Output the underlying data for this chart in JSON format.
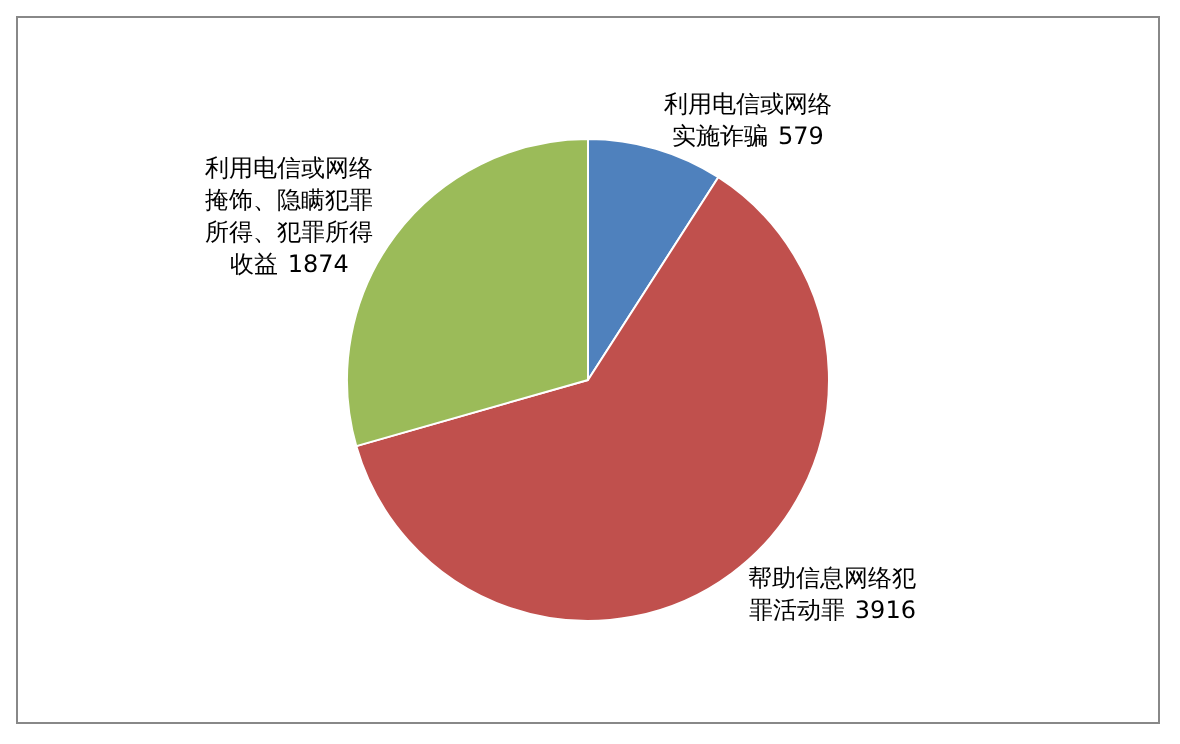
{
  "chart_data": {
    "type": "pie",
    "categories": [
      "利用电信或网络实施诈骗",
      "帮助信息网络犯罪活动罪",
      "利用电信或网络掩饰、隐瞒犯罪所得、犯罪所得收益"
    ],
    "values": [
      579,
      3916,
      1874
    ],
    "colors": [
      "#4f81bd",
      "#c0504d",
      "#9bbb59"
    ],
    "data_labels": true
  }
}
